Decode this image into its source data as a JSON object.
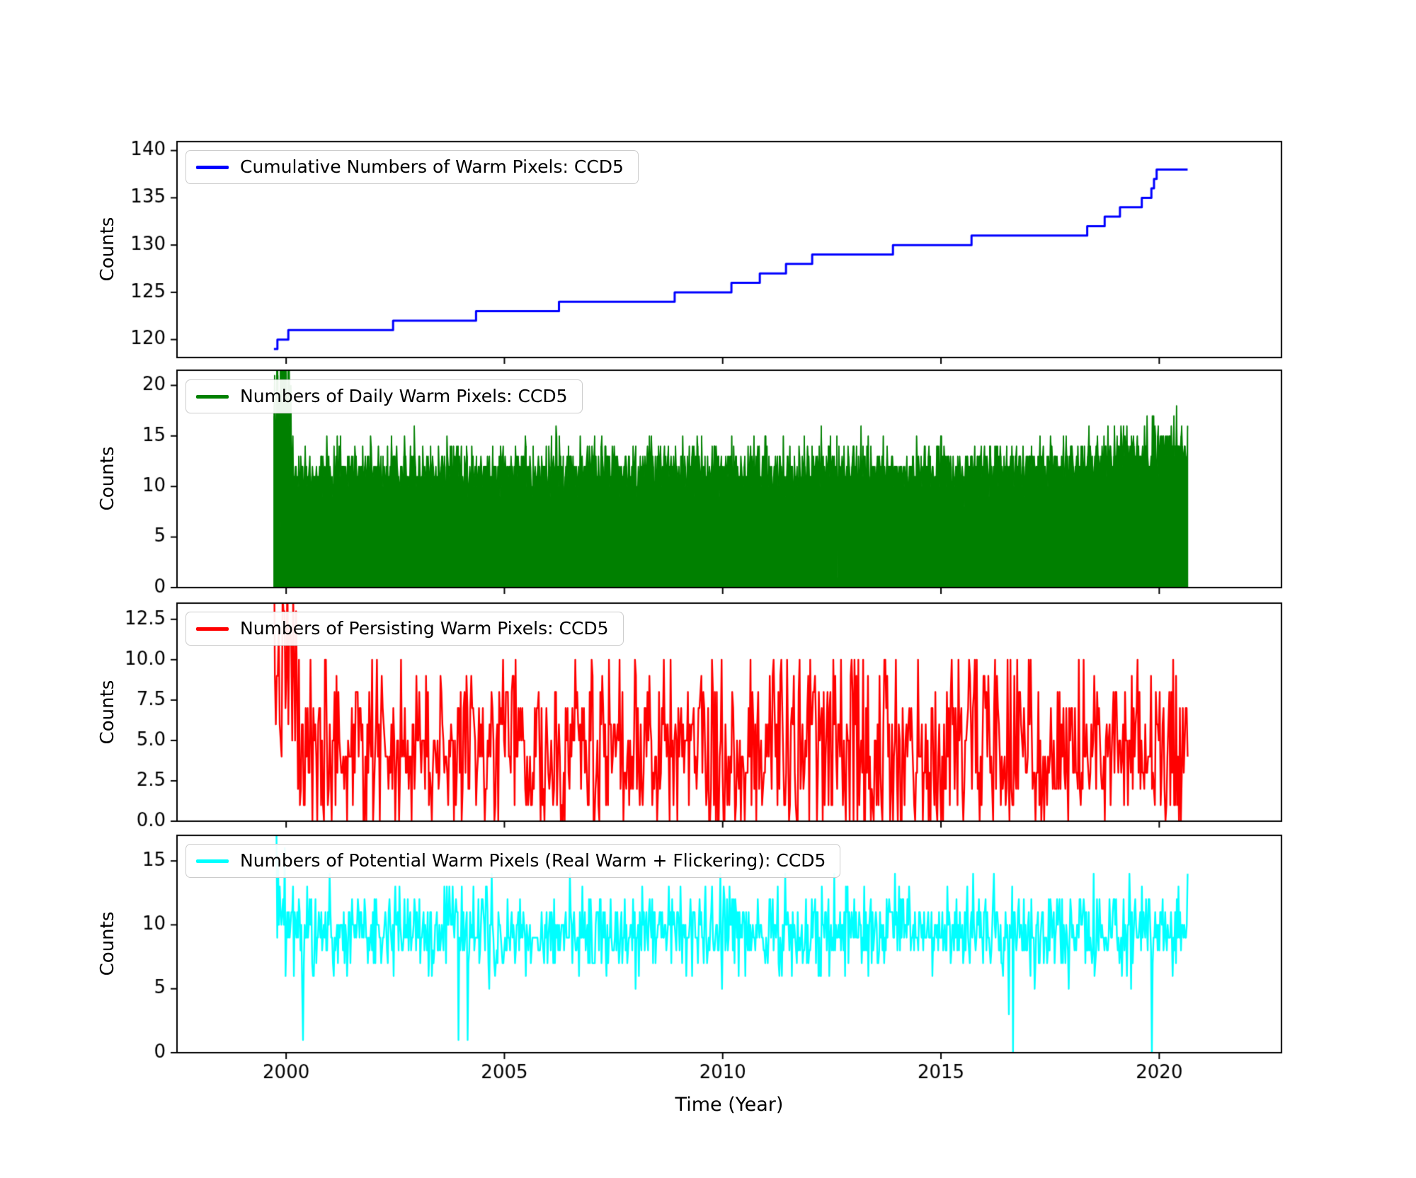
{
  "figure": {
    "xlabel": "Time (Year)",
    "ylabel": "Counts",
    "background": "#ffffff",
    "x_range": [
      1997.5,
      2022.8
    ],
    "x_ticks": [
      [
        2000,
        "2000"
      ],
      [
        2005,
        "2005"
      ],
      [
        2010,
        "2010"
      ],
      [
        2015,
        "2015"
      ],
      [
        2020,
        "2020"
      ]
    ]
  },
  "chart_data": [
    {
      "type": "line",
      "line_style": "step",
      "legend": "Cumulative Numbers of Warm Pixels: CCD5",
      "color": "#0000ff",
      "ylim": [
        118.1,
        140.95
      ],
      "y_ticks": [
        [
          120,
          "120"
        ],
        [
          125,
          "125"
        ],
        [
          130,
          "130"
        ],
        [
          135,
          "135"
        ],
        [
          140,
          "140"
        ]
      ],
      "x_end": 2020.65,
      "steps": [
        [
          1999.72,
          119
        ],
        [
          1999.8,
          120
        ],
        [
          2000.05,
          121
        ],
        [
          2002.45,
          122
        ],
        [
          2004.35,
          123
        ],
        [
          2006.25,
          124
        ],
        [
          2008.9,
          125
        ],
        [
          2010.2,
          126
        ],
        [
          2010.85,
          127
        ],
        [
          2011.45,
          128
        ],
        [
          2012.05,
          129
        ],
        [
          2013.9,
          130
        ],
        [
          2015.7,
          131
        ],
        [
          2018.35,
          132
        ],
        [
          2018.75,
          133
        ],
        [
          2019.1,
          134
        ],
        [
          2019.6,
          135
        ],
        [
          2019.82,
          136
        ],
        [
          2019.88,
          137
        ],
        [
          2019.94,
          138
        ]
      ]
    },
    {
      "type": "area",
      "legend": "Numbers of Daily Warm Pixels: CCD5",
      "color": "#008000",
      "ylim": [
        0,
        21.5
      ],
      "y_ticks": [
        [
          0,
          "0"
        ],
        [
          5,
          "5"
        ],
        [
          10,
          "10"
        ],
        [
          15,
          "15"
        ],
        [
          20,
          "20"
        ]
      ],
      "gen": {
        "seed": 42,
        "n": 1400,
        "start": 1999.72,
        "end": 2020.65,
        "base": 11.8,
        "sd": 1.3,
        "round": true,
        "min": 0,
        "cap": 15.5,
        "spike_prob": 0.03,
        "spike_add": 2.2,
        "drop_prob": 0.0015,
        "drop_to": 0.5,
        "burst_until": 2000.12,
        "burst_base": 22,
        "burst_sd": 5,
        "trend_start": 2016.5,
        "trend_rate": 0.55,
        "trend_cap_add": 3
      }
    },
    {
      "type": "line",
      "legend": "Numbers of Persisting Warm Pixels: CCD5",
      "color": "#ff0000",
      "ylim": [
        0,
        13.5
      ],
      "y_ticks": [
        [
          0,
          "0.0"
        ],
        [
          2.5,
          "2.5"
        ],
        [
          5,
          "5.0"
        ],
        [
          7.5,
          "7.5"
        ],
        [
          10,
          "10.0"
        ],
        [
          12.5,
          "12.5"
        ]
      ],
      "gen": {
        "seed": 7,
        "n": 950,
        "start": 1999.72,
        "end": 2020.65,
        "base": 4.8,
        "sd": 2.9,
        "round": true,
        "min": 0,
        "cap": 10,
        "spike_prob": 0.02,
        "spike_add": 2.0,
        "drop_prob": 0.05,
        "drop_to": 0,
        "burst_until": 2000.25,
        "burst_base": 9,
        "burst_sd": 3.5
      }
    },
    {
      "type": "line",
      "legend": "Numbers of Potential Warm Pixels (Real Warm + Flickering): CCD5",
      "color": "#00ffff",
      "ylim": [
        0,
        17.0
      ],
      "y_ticks": [
        [
          0,
          "0"
        ],
        [
          5,
          "5"
        ],
        [
          10,
          "10"
        ],
        [
          15,
          "15"
        ]
      ],
      "gen": {
        "seed": 99,
        "n": 1100,
        "start": 1999.72,
        "end": 2020.65,
        "base": 9.4,
        "sd": 1.7,
        "round": true,
        "min": 0,
        "cap": 14,
        "spike_prob": 0.025,
        "spike_add": 2.5,
        "drop_prob": 0.004,
        "drop_to": 0,
        "burst_until": 2000.3,
        "burst_base": 11,
        "burst_sd": 3,
        "init_spike": 21
      }
    }
  ]
}
